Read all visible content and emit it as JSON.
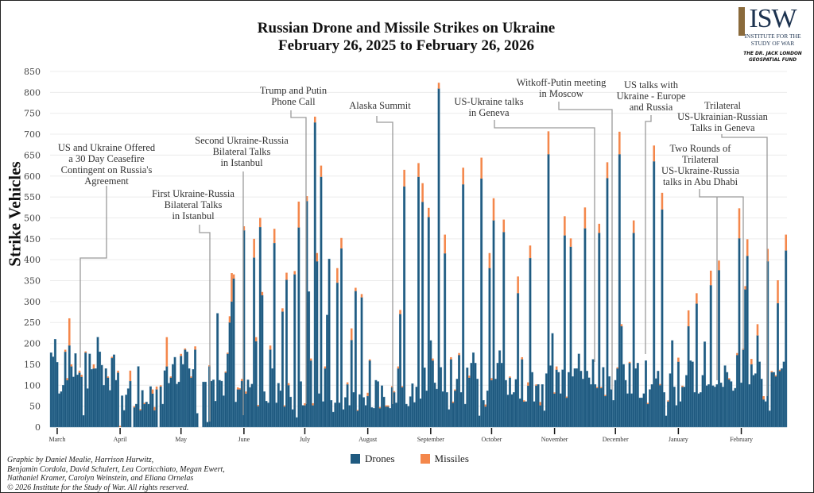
{
  "title_line1": "Russian Drone and Missile Strikes on Ukraine",
  "title_line2": "February 26, 2025 to February 26, 2026",
  "logo": {
    "text": "ISW",
    "sub": "INSTITUTE FOR THE STUDY OF WAR",
    "fund": "THE DR. JACK LONDON\nGEOSPATIAL FUND"
  },
  "credits": [
    "Graphic by Daniel Mealie, Harrison Hurwitz,",
    "Benjamin Cordola, David Schulert, Lea Corticchiato, Megan Ewert,",
    "Nathaniel Kramer, Carolyn Weinstein, and Eliana Ornelas",
    "© 2026 Institute for the Study of War. All rights reserved."
  ],
  "annotations": [
    {
      "text": "US and Ukraine Offered\na 30 Day Ceasefire\nContingent on Russia's\nAgreement"
    },
    {
      "text": "First Ukraine-Russia\nBilateral Talks\nin Istanbul"
    },
    {
      "text": "Second Ukraine-Russia\nBilateral Talks\nin Istanbul"
    },
    {
      "text": "Trump and Putin\nPhone Call"
    },
    {
      "text": "Alaska Summit"
    },
    {
      "text": "US-Ukraine talks\nin Geneva"
    },
    {
      "text": "Witkoff-Putin meeting\nin Moscow"
    },
    {
      "text": "US talks with\nUkraine - Europe\nand Russia"
    },
    {
      "text": "Trilateral\nUS-Ukrainian-Russian\nTalks in Geneva"
    },
    {
      "text": "Two Rounds of\nTrilateral\nUS-Ukraine-Russia\ntalks in Abu Dhabi"
    }
  ],
  "chart_data": {
    "type": "bar",
    "stacked": true,
    "title": "Russian Drone and Missile Strikes on Ukraine February 26, 2025 to February 26, 2026",
    "ylabel": "Strike Vehicles",
    "xlabel": "",
    "x_start": "2025-02-26",
    "x_interval": "daily",
    "ylim": [
      0,
      850
    ],
    "y_ticks": [
      "0",
      "50",
      "100",
      "150",
      "200",
      "250",
      "300",
      "350",
      "400",
      "450",
      "500",
      "550",
      "600",
      "650",
      "700",
      "750",
      "800",
      "850"
    ],
    "x_ticks": [
      {
        "label": "March",
        "date": "2025-03-01"
      },
      {
        "label": "April",
        "date": "2025-04-01"
      },
      {
        "label": "May",
        "date": "2025-05-01"
      },
      {
        "label": "June",
        "date": "2025-06-01"
      },
      {
        "label": "July",
        "date": "2025-07-01"
      },
      {
        "label": "August",
        "date": "2025-08-01"
      },
      {
        "label": "September",
        "date": "2025-09-01"
      },
      {
        "label": "October",
        "date": "2025-10-01"
      },
      {
        "label": "November",
        "date": "2025-11-01"
      },
      {
        "label": "December",
        "date": "2025-12-01"
      },
      {
        "label": "January",
        "date": "2026-01-01"
      },
      {
        "label": "February",
        "date": "2026-02-01"
      }
    ],
    "grid": true,
    "legend": "bottom",
    "colors": {
      "Drones": "#1f5a80",
      "Missiles": "#f4874b"
    },
    "series": [
      {
        "name": "Drones",
        "values": [
          178,
          168,
          210,
          155,
          80,
          85,
          100,
          180,
          112,
          195,
          145,
          120,
          176,
          125,
          130,
          120,
          28,
          178,
          92,
          175,
          138,
          140,
          140,
          215,
          180,
          148,
          100,
          140,
          118,
          88,
          165,
          173,
          112,
          130,
          0,
          75,
          40,
          77,
          92,
          110,
          0,
          47,
          55,
          145,
          40,
          88,
          55,
          60,
          55,
          97,
          80,
          40,
          90,
          0,
          97,
          55,
          135,
          145,
          105,
          118,
          150,
          167,
          103,
          108,
          170,
          150,
          185,
          180,
          140,
          118,
          138,
          185,
          33,
          0,
          0,
          108,
          108,
          12,
          145,
          110,
          113,
          62,
          272,
          112,
          110,
          75,
          130,
          175,
          250,
          300,
          355,
          60,
          90,
          90,
          110,
          470,
          80,
          113,
          95,
          103,
          405,
          205,
          50,
          478,
          315,
          85,
          62,
          58,
          185,
          140,
          440,
          58,
          105,
          87,
          276,
          49,
          352,
          100,
          72,
          42,
          365,
          23,
          477,
          109,
          52,
          52,
          540,
          324,
          159,
          52,
          728,
          396,
          80,
          598,
          61,
          140,
          268,
          402,
          64,
          36,
          58,
          345,
          58,
          427,
          42,
          71,
          102,
          52,
          208,
          83,
          325,
          39,
          78,
          310,
          71,
          52,
          74,
          159,
          47,
          45,
          112,
          109,
          45,
          99,
          72,
          49,
          49,
          45,
          95,
          83,
          58,
          140,
          270,
          95,
          575,
          55,
          50,
          73,
          104,
          59,
          96,
          598,
          68,
          538,
          142,
          87,
          502,
          207,
          159,
          106,
          91,
          809,
          143,
          85,
          415,
          83,
          42,
          162,
          58,
          87,
          115,
          172,
          83,
          580,
          55,
          142,
          118,
          153,
          178,
          153,
          115,
          27,
          594,
          64,
          49,
          87,
          380,
          112,
          494,
          115,
          153,
          183,
          153,
          466,
          112,
          77,
          118,
          78,
          83,
          114,
          320,
          68,
          162,
          61,
          61,
          99,
          404,
          131,
          61,
          99,
          102,
          52,
          102,
          39,
          128,
          652,
          147,
          224,
          80,
          137,
          131,
          80,
          137,
          458,
          70,
          131,
          431,
          121,
          140,
          140,
          175,
          134,
          115,
          475,
          134,
          118,
          102,
          162,
          102,
          93,
          464,
          93,
          143,
          74,
          595,
          121,
          90,
          64,
          112,
          140,
          652,
          241,
          150,
          112,
          80,
          153,
          80,
          464,
          140,
          153,
          70,
          70,
          80,
          159,
          55,
          90,
          102,
          635,
          116,
          134,
          100,
          520,
          83,
          27,
          61,
          128,
          207,
          96,
          52,
          156,
          61,
          96,
          96,
          124,
          241,
          159,
          156,
          83,
          295,
          80,
          83,
          124,
          204,
          99,
          102,
          339,
          99,
          96,
          102,
          375,
          106,
          96,
          147,
          131,
          114,
          109,
          87,
          93,
          172,
          451,
          106,
          185,
          329,
          409,
          102,
          150,
          124,
          128,
          219,
          156,
          115,
          66,
          61,
          396,
          39,
          131,
          131,
          121,
          296,
          134,
          140,
          156,
          422
        ]
      },
      {
        "name": "Missiles",
        "values": [
          0,
          0,
          0,
          0,
          0,
          0,
          0,
          5,
          5,
          65,
          5,
          0,
          0,
          0,
          5,
          5,
          0,
          3,
          0,
          0,
          0,
          10,
          0,
          0,
          0,
          0,
          0,
          0,
          3,
          0,
          3,
          0,
          0,
          5,
          3,
          0,
          0,
          0,
          0,
          25,
          0,
          3,
          0,
          0,
          3,
          0,
          3,
          0,
          0,
          0,
          10,
          8,
          7,
          0,
          3,
          0,
          0,
          70,
          0,
          3,
          0,
          0,
          0,
          0,
          5,
          0,
          3,
          0,
          0,
          3,
          0,
          8,
          0,
          0,
          0,
          0,
          0,
          0,
          3,
          0,
          0,
          0,
          0,
          0,
          0,
          0,
          3,
          3,
          15,
          68,
          10,
          0,
          5,
          3,
          5,
          10,
          5,
          0,
          0,
          0,
          45,
          10,
          3,
          22,
          8,
          0,
          0,
          0,
          10,
          0,
          34,
          0,
          0,
          0,
          8,
          3,
          17,
          5,
          0,
          0,
          8,
          0,
          62,
          0,
          0,
          5,
          12,
          0,
          5,
          5,
          14,
          20,
          0,
          27,
          0,
          5,
          0,
          0,
          0,
          0,
          0,
          35,
          0,
          25,
          0,
          0,
          5,
          0,
          28,
          0,
          8,
          2,
          0,
          8,
          0,
          0,
          8,
          3,
          0,
          0,
          0,
          0,
          3,
          0,
          0,
          3,
          3,
          0,
          3,
          3,
          0,
          5,
          10,
          3,
          40,
          0,
          0,
          0,
          0,
          0,
          0,
          33,
          0,
          45,
          0,
          0,
          22,
          0,
          5,
          0,
          0,
          14,
          0,
          0,
          45,
          0,
          0,
          5,
          3,
          3,
          0,
          5,
          0,
          40,
          0,
          0,
          5,
          0,
          0,
          0,
          0,
          0,
          50,
          0,
          5,
          0,
          36,
          5,
          53,
          0,
          0,
          0,
          0,
          30,
          0,
          0,
          3,
          0,
          0,
          0,
          40,
          0,
          5,
          3,
          0,
          8,
          30,
          0,
          0,
          3,
          0,
          8,
          0,
          0,
          0,
          55,
          0,
          0,
          3,
          8,
          0,
          0,
          0,
          46,
          3,
          0,
          20,
          0,
          0,
          0,
          0,
          0,
          0,
          50,
          0,
          0,
          0,
          0,
          0,
          3,
          22,
          3,
          0,
          3,
          38,
          0,
          0,
          0,
          0,
          3,
          54,
          5,
          0,
          0,
          0,
          3,
          0,
          30,
          0,
          0,
          0,
          0,
          0,
          0,
          3,
          0,
          0,
          38,
          0,
          0,
          3,
          40,
          0,
          0,
          3,
          0,
          0,
          0,
          0,
          10,
          0,
          3,
          0,
          0,
          38,
          0,
          0,
          0,
          25,
          0,
          0,
          0,
          0,
          0,
          0,
          35,
          0,
          0,
          0,
          23,
          0,
          0,
          0,
          0,
          3,
          0,
          0,
          0,
          5,
          72,
          0,
          3,
          8,
          40,
          0,
          13,
          0,
          0,
          27,
          0,
          0,
          8,
          0,
          30,
          0,
          3,
          0,
          3,
          55,
          3,
          0,
          0,
          38
        ]
      }
    ]
  }
}
